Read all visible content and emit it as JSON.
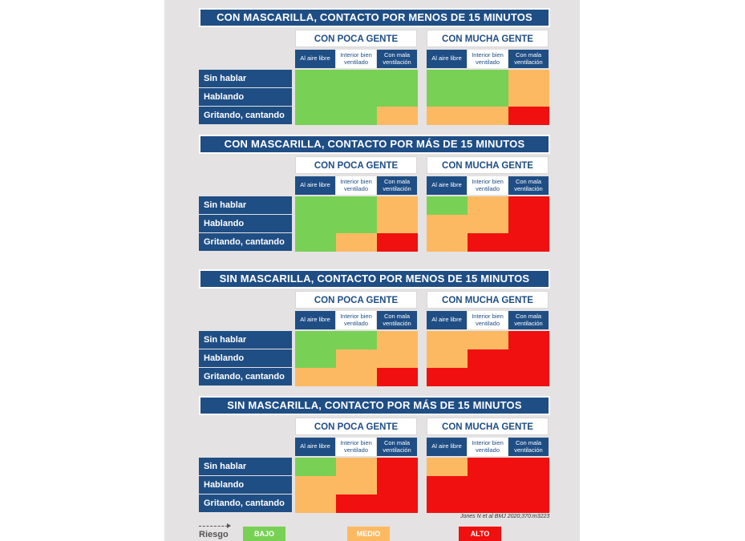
{
  "groups": [
    "CON POCA GENTE",
    "CON MUCHA GENTE"
  ],
  "subheaders": [
    "Al aire libre",
    "Interior bien ventilado",
    "Con mala ventilación"
  ],
  "rows": [
    "Sin hablar",
    "Hablando",
    "Gritando, cantando"
  ],
  "sections": [
    {
      "title": "CON MASCARILLA, CONTACTO POR MENOS DE 15 MINUTOS",
      "grid": [
        [
          "bajo",
          "bajo",
          "bajo",
          "bajo",
          "bajo",
          "medio"
        ],
        [
          "bajo",
          "bajo",
          "bajo",
          "bajo",
          "bajo",
          "medio"
        ],
        [
          "bajo",
          "bajo",
          "medio",
          "medio",
          "medio",
          "alto"
        ]
      ]
    },
    {
      "title": "CON MASCARILLA, CONTACTO POR MÁS DE 15 MINUTOS",
      "grid": [
        [
          "bajo",
          "bajo",
          "medio",
          "bajo",
          "medio",
          "alto"
        ],
        [
          "bajo",
          "bajo",
          "medio",
          "medio",
          "medio",
          "alto"
        ],
        [
          "bajo",
          "medio",
          "alto",
          "medio",
          "alto",
          "alto"
        ]
      ]
    },
    {
      "title": "SIN MASCARILLA, CONTACTO POR MENOS DE 15 MINUTOS",
      "grid": [
        [
          "bajo",
          "bajo",
          "medio",
          "medio",
          "medio",
          "alto"
        ],
        [
          "bajo",
          "medio",
          "medio",
          "medio",
          "alto",
          "alto"
        ],
        [
          "medio",
          "medio",
          "alto",
          "alto",
          "alto",
          "alto"
        ]
      ]
    },
    {
      "title": "SIN MASCARILLA, CONTACTO POR MÁS DE 15 MINUTOS",
      "grid": [
        [
          "bajo",
          "medio",
          "alto",
          "medio",
          "alto",
          "alto"
        ],
        [
          "medio",
          "medio",
          "alto",
          "alto",
          "alto",
          "alto"
        ],
        [
          "medio",
          "alto",
          "alto",
          "alto",
          "alto",
          "alto"
        ]
      ]
    }
  ],
  "citation": "Jones N et al BMJ 2020;370:m3223",
  "legend": {
    "label": "Riesgo",
    "items": [
      {
        "key": "bajo",
        "label": "BAJO",
        "color": "#78d155"
      },
      {
        "key": "medio",
        "label": "MEDIO",
        "color": "#fdb962"
      },
      {
        "key": "alto",
        "label": "ALTO",
        "color": "#f01010"
      }
    ]
  }
}
